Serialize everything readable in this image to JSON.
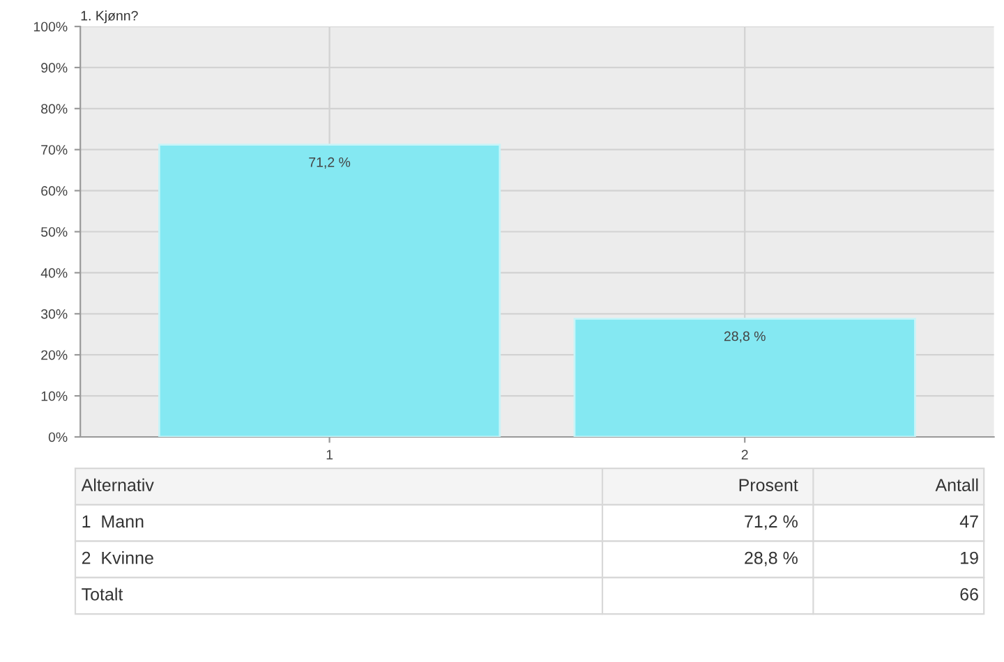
{
  "chart_data": {
    "type": "bar",
    "title": "1. Kjønn?",
    "categories": [
      "1",
      "2"
    ],
    "values": [
      71.2,
      28.8
    ],
    "value_labels": [
      "71,2 %",
      "28,8 %"
    ],
    "color": "#84e8f2",
    "ylim": [
      0,
      100
    ],
    "yticks": [
      {
        "value": 0,
        "label": "0%"
      },
      {
        "value": 10,
        "label": "10%"
      },
      {
        "value": 20,
        "label": "20%"
      },
      {
        "value": 30,
        "label": "30%"
      },
      {
        "value": 40,
        "label": "40%"
      },
      {
        "value": 50,
        "label": "50%"
      },
      {
        "value": 60,
        "label": "60%"
      },
      {
        "value": 70,
        "label": "70%"
      },
      {
        "value": 80,
        "label": "80%"
      },
      {
        "value": 90,
        "label": "90%"
      },
      {
        "value": 100,
        "label": "100%"
      }
    ],
    "grid": true,
    "annotations": [
      "Alternativ",
      "Prosent",
      "Antall",
      "1  Mann",
      "71,2 %",
      "47",
      "2  Kvinne",
      "28,8 %",
      "19",
      "Totalt",
      "66"
    ]
  }
}
